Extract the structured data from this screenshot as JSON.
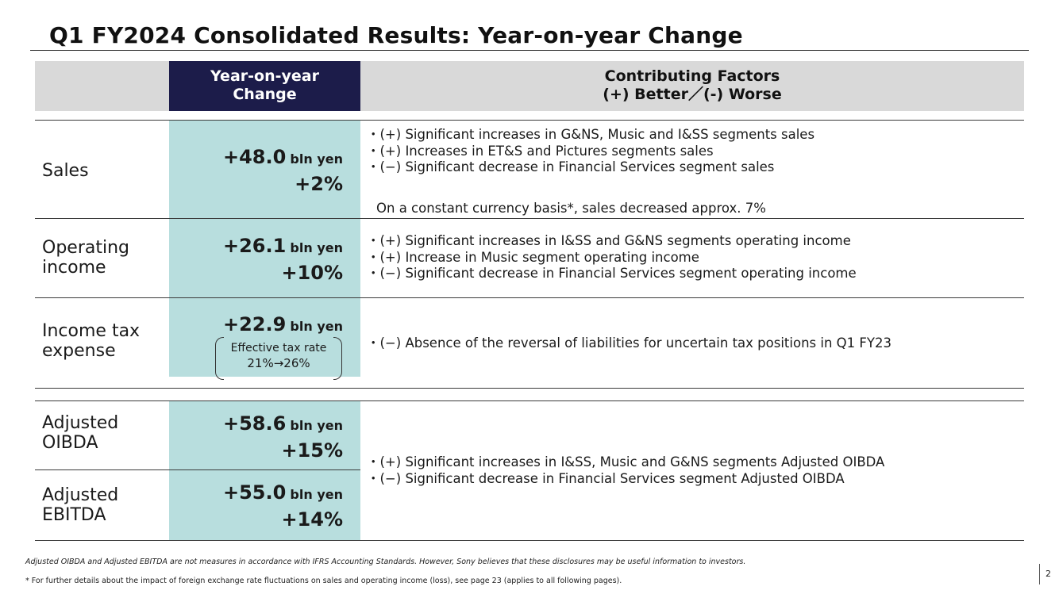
{
  "title": "Q1 FY2024 Consolidated Results: Year-on-year Change",
  "header": {
    "yoy_line1": "Year-on-year",
    "yoy_line2": "Change",
    "factors_line1": "Contributing Factors",
    "factors_line2": "(+) Better／(-) Worse"
  },
  "rows": {
    "sales": {
      "label": "Sales",
      "value": "+48.0",
      "unit": "bln yen",
      "pct": "+2%",
      "factors": [
        "・(+) Significant increases in G&NS, Music and I&SS segments sales",
        "・(+) Increases in ET&S and Pictures segments sales",
        "・(−) Significant decrease in Financial Services segment sales"
      ],
      "note": "On a constant currency basis*, sales decreased approx. 7%"
    },
    "operating_income": {
      "label_line1": "Operating",
      "label_line2": "income",
      "value": "+26.1",
      "unit": "bln yen",
      "pct": "+10%",
      "factors": [
        "・(+) Significant increases in I&SS and G&NS segments operating income",
        "・(+) Increase in Music segment operating income",
        "・(−) Significant decrease in Financial Services segment operating income"
      ]
    },
    "income_tax": {
      "label_line1": "Income tax",
      "label_line2": "expense",
      "value": "+22.9",
      "unit": "bln yen",
      "tax_rate_label": "Effective tax rate",
      "tax_rate_value": "21%→26%",
      "factors": [
        "・(−) Absence of the reversal of liabilities for uncertain tax positions in Q1 FY23"
      ]
    },
    "adjusted_oibda": {
      "label_line1": "Adjusted",
      "label_line2": "OIBDA",
      "value": "+58.6",
      "unit": "bln yen",
      "pct": "+15%"
    },
    "adjusted_ebitda": {
      "label_line1": "Adjusted",
      "label_line2": "EBITDA",
      "value": "+55.0",
      "unit": "bln yen",
      "pct": "+14%"
    },
    "adjusted_factors": [
      "・(+) Significant increases in I&SS, Music and G&NS segments Adjusted OIBDA",
      "・(−) Significant decrease in Financial Services segment Adjusted OIBDA"
    ]
  },
  "footnotes": {
    "disclaimer": "Adjusted OIBDA and Adjusted EBITDA are not measures in accordance with IFRS Accounting Standards. However, Sony believes that these disclosures may be useful information to investors.",
    "fx_note": "* For further details about the impact of foreign exchange rate fluctuations on sales and operating income (loss), see page 23 (applies to all following pages)."
  },
  "page_number": "2"
}
